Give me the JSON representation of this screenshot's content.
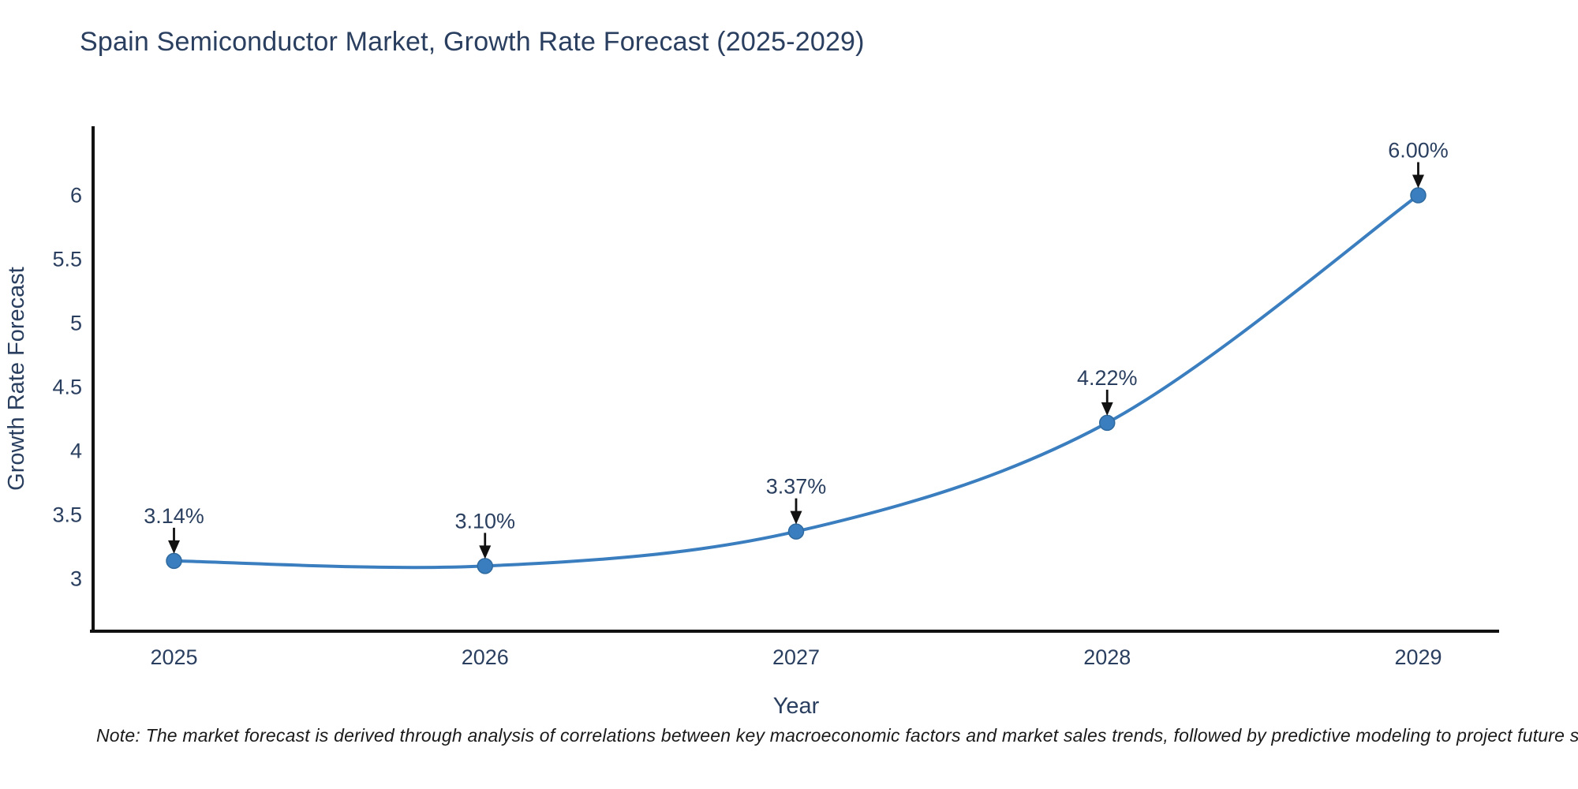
{
  "page": {
    "background": "#ffffff"
  },
  "chart_data": {
    "type": "line",
    "title": "Spain Semiconductor Market, Growth Rate Forecast (2025-2029)",
    "xlabel": "Year",
    "ylabel": "Growth Rate Forecast",
    "x": [
      2025,
      2026,
      2027,
      2028,
      2029
    ],
    "series": [
      {
        "name": "Growth Rate Forecast",
        "values": [
          3.14,
          3.1,
          3.37,
          4.22,
          6.0
        ]
      }
    ],
    "point_labels": [
      "3.14%",
      "3.10%",
      "3.37%",
      "4.22%",
      "6.00%"
    ],
    "x_ticks": {
      "values": [
        2025,
        2026,
        2027,
        2028,
        2029
      ],
      "labels": [
        "2025",
        "2026",
        "2027",
        "2028",
        "2029"
      ]
    },
    "y_ticks": {
      "values": [
        3,
        3.5,
        4,
        4.5,
        5,
        5.5,
        6
      ],
      "labels": [
        "3",
        "3.5",
        "4",
        "4.5",
        "5",
        "5.5",
        "6"
      ]
    },
    "xlim": [
      2024.74,
      2029.26
    ],
    "ylim": [
      2.59,
      6.54
    ],
    "grid": false,
    "legend": "none",
    "line_style": "spline",
    "colors": {
      "line": "#3a7ebf",
      "marker": "#3a7ebf",
      "marker_edge": "#2f6a9f",
      "axis": "#111111",
      "text": "#2a3f5f",
      "arrow": "#111111"
    },
    "note": "Note: The market forecast is derived through analysis of correlations between key macroeconomic factors and market sales trends, followed by predictive modeling to project future sales"
  }
}
